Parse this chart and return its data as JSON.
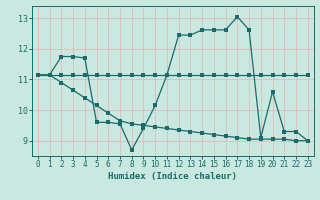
{
  "xlabel": "Humidex (Indice chaleur)",
  "xlim": [
    -0.5,
    23.5
  ],
  "ylim": [
    8.5,
    13.4
  ],
  "yticks": [
    9,
    10,
    11,
    12,
    13
  ],
  "xticks": [
    0,
    1,
    2,
    3,
    4,
    5,
    6,
    7,
    8,
    9,
    10,
    11,
    12,
    13,
    14,
    15,
    16,
    17,
    18,
    19,
    20,
    21,
    22,
    23
  ],
  "background_color": "#c8e8e0",
  "grid_color": "#e8b0b0",
  "line_color": "#1a6b6b",
  "line1_y": [
    11.15,
    11.15,
    11.15,
    11.15,
    11.15,
    11.15,
    11.15,
    11.15,
    11.15,
    11.15,
    11.15,
    11.15,
    11.15,
    11.15,
    11.15,
    11.15,
    11.15,
    11.15,
    11.15,
    11.15,
    11.15,
    11.15,
    11.15,
    11.15
  ],
  "line2_y": [
    11.15,
    11.15,
    11.75,
    11.75,
    11.7,
    9.6,
    9.6,
    9.55,
    8.7,
    9.4,
    10.15,
    11.15,
    12.45,
    12.45,
    12.62,
    12.62,
    12.62,
    13.05,
    12.62,
    9.1,
    10.6,
    9.3,
    9.3,
    9.0
  ],
  "line3_y": [
    11.15,
    11.15,
    10.9,
    10.65,
    10.4,
    10.15,
    9.9,
    9.65,
    9.55,
    9.5,
    9.45,
    9.4,
    9.35,
    9.3,
    9.25,
    9.2,
    9.15,
    9.1,
    9.05,
    9.05,
    9.05,
    9.05,
    9.0,
    9.0
  ]
}
